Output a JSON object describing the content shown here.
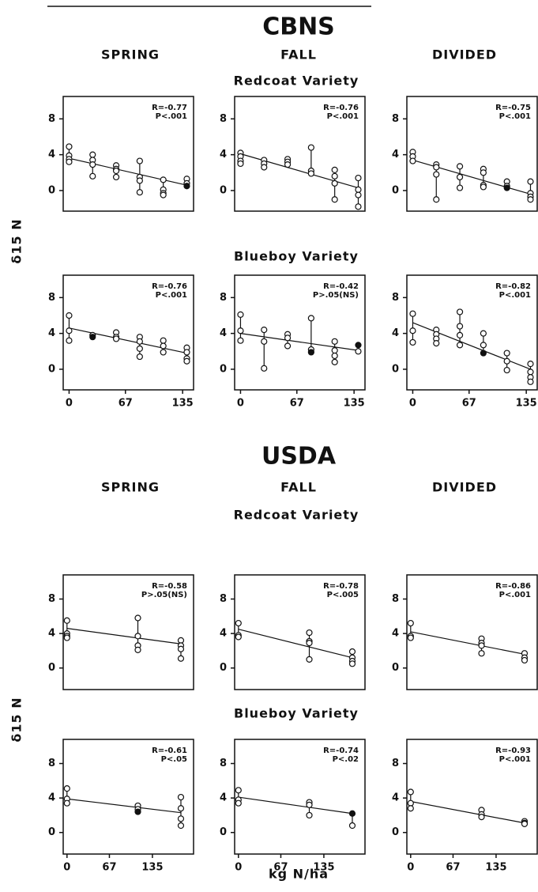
{
  "figure": {
    "sections": [
      {
        "title": "CBNS",
        "columns": [
          "SPRING",
          "FALL",
          "DIVIDED"
        ],
        "rows": [
          "Redcoat Variety",
          "Blueboy Variety"
        ]
      },
      {
        "title": "USDA",
        "columns": [
          "SPRING",
          "FALL",
          "DIVIDED"
        ],
        "rows": [
          "Redcoat Variety",
          "Blueboy Variety"
        ]
      }
    ],
    "ylabel": "δ15 N",
    "xlabel": "kg N/ha"
  },
  "chart_data": [
    {
      "type": "scatter",
      "annotations": [
        "R=-0.77",
        "P<.001"
      ],
      "xlim": [
        -7,
        148
      ],
      "ylim": [
        -2.3,
        10.5
      ],
      "yticks": [
        0,
        4,
        8
      ],
      "x": [
        0,
        0,
        0,
        0,
        28,
        28,
        28,
        28,
        56,
        56,
        56,
        56,
        84,
        84,
        84,
        84,
        112,
        112,
        112,
        112,
        140,
        140,
        140
      ],
      "y": [
        4.9,
        3.9,
        3.5,
        3.2,
        4.0,
        3.4,
        2.9,
        1.6,
        2.8,
        2.4,
        2.2,
        1.5,
        3.3,
        1.5,
        1.1,
        -0.2,
        1.2,
        0.1,
        -0.3,
        -0.5,
        1.3,
        0.8,
        0.5
      ],
      "filled": [
        false,
        false,
        false,
        false,
        false,
        false,
        false,
        false,
        false,
        false,
        false,
        false,
        false,
        false,
        false,
        false,
        false,
        false,
        false,
        false,
        false,
        false,
        true
      ],
      "fit": {
        "x": [
          0,
          140
        ],
        "y": [
          3.6,
          0.6
        ]
      }
    },
    {
      "type": "scatter",
      "annotations": [
        "R=-0.76",
        "P<.001"
      ],
      "xlim": [
        -7,
        148
      ],
      "ylim": [
        -2.3,
        10.5
      ],
      "yticks": [
        0,
        4,
        8
      ],
      "x": [
        0,
        0,
        0,
        0,
        28,
        28,
        28,
        56,
        56,
        56,
        84,
        84,
        84,
        112,
        112,
        112,
        112,
        140,
        140,
        140,
        140
      ],
      "y": [
        4.2,
        3.8,
        3.3,
        3.0,
        3.4,
        3.0,
        2.6,
        3.5,
        3.2,
        2.9,
        4.8,
        2.2,
        1.9,
        2.3,
        1.6,
        0.8,
        -1.0,
        1.4,
        0.1,
        -0.5,
        -1.8
      ],
      "filled": [
        false,
        false,
        false,
        false,
        false,
        false,
        false,
        false,
        false,
        false,
        false,
        false,
        false,
        false,
        false,
        false,
        false,
        false,
        false,
        false,
        false
      ],
      "fit": {
        "x": [
          0,
          140
        ],
        "y": [
          4.1,
          0.3
        ]
      }
    },
    {
      "type": "scatter",
      "annotations": [
        "R=-0.75",
        "P<.001"
      ],
      "xlim": [
        -7,
        148
      ],
      "ylim": [
        -2.3,
        10.5
      ],
      "yticks": [
        0,
        4,
        8
      ],
      "x": [
        0,
        0,
        0,
        28,
        28,
        28,
        28,
        56,
        56,
        56,
        84,
        84,
        84,
        84,
        112,
        112,
        112,
        140,
        140,
        140,
        140
      ],
      "y": [
        4.3,
        3.8,
        3.3,
        2.9,
        2.6,
        1.8,
        -1.0,
        2.7,
        1.5,
        0.3,
        2.4,
        2.0,
        0.6,
        0.4,
        1.0,
        0.5,
        0.3,
        1.0,
        -0.3,
        -0.7,
        -1.0
      ],
      "filled": [
        false,
        false,
        false,
        false,
        false,
        false,
        false,
        false,
        false,
        false,
        false,
        false,
        false,
        false,
        false,
        false,
        true,
        false,
        false,
        false,
        false
      ],
      "fit": {
        "x": [
          0,
          140
        ],
        "y": [
          3.4,
          -0.4
        ]
      }
    },
    {
      "type": "scatter",
      "annotations": [
        "R=-0.76",
        "P<.001"
      ],
      "xlim": [
        -7,
        148
      ],
      "ylim": [
        -2.3,
        10.5
      ],
      "yticks": [
        0,
        4,
        8
      ],
      "xticks": [
        0,
        67,
        135
      ],
      "x": [
        0,
        0,
        0,
        28,
        28,
        56,
        56,
        56,
        84,
        84,
        84,
        84,
        112,
        112,
        112,
        140,
        140,
        140,
        140
      ],
      "y": [
        6.0,
        4.3,
        3.2,
        3.8,
        3.6,
        4.1,
        3.6,
        3.4,
        3.6,
        3.1,
        2.3,
        1.4,
        3.2,
        2.6,
        1.9,
        2.4,
        1.9,
        1.2,
        0.9
      ],
      "filled": [
        false,
        false,
        false,
        false,
        true,
        false,
        false,
        false,
        false,
        false,
        false,
        false,
        false,
        false,
        false,
        false,
        false,
        false,
        false
      ],
      "fit": {
        "x": [
          0,
          140
        ],
        "y": [
          4.6,
          1.8
        ]
      }
    },
    {
      "type": "scatter",
      "annotations": [
        "R=-0.42",
        "P>.05(NS)"
      ],
      "xlim": [
        -7,
        148
      ],
      "ylim": [
        -2.3,
        10.5
      ],
      "yticks": [
        0,
        4,
        8
      ],
      "xticks": [
        0,
        67,
        135
      ],
      "x": [
        0,
        0,
        0,
        28,
        28,
        28,
        56,
        56,
        56,
        84,
        84,
        84,
        112,
        112,
        112,
        112,
        140,
        140
      ],
      "y": [
        6.1,
        4.3,
        3.2,
        4.4,
        3.1,
        0.1,
        3.9,
        3.5,
        2.6,
        5.7,
        2.2,
        1.9,
        3.1,
        2.1,
        1.5,
        0.8,
        2.7,
        2.0
      ],
      "filled": [
        false,
        false,
        false,
        false,
        false,
        false,
        false,
        false,
        false,
        false,
        false,
        true,
        false,
        false,
        false,
        false,
        true,
        false
      ],
      "fit": {
        "x": [
          0,
          140
        ],
        "y": [
          4.0,
          2.1
        ]
      }
    },
    {
      "type": "scatter",
      "annotations": [
        "R=-0.82",
        "P<.001"
      ],
      "xlim": [
        -7,
        148
      ],
      "ylim": [
        -2.3,
        10.5
      ],
      "yticks": [
        0,
        4,
        8
      ],
      "xticks": [
        0,
        67,
        135
      ],
      "x": [
        0,
        0,
        0,
        28,
        28,
        28,
        28,
        56,
        56,
        56,
        56,
        84,
        84,
        84,
        112,
        112,
        112,
        140,
        140,
        140,
        140
      ],
      "y": [
        6.2,
        4.3,
        3.0,
        4.4,
        3.9,
        3.4,
        2.9,
        6.4,
        4.8,
        3.8,
        2.7,
        4.0,
        2.7,
        1.8,
        1.8,
        0.9,
        -0.1,
        0.6,
        -0.3,
        -0.9,
        -1.4
      ],
      "filled": [
        false,
        false,
        false,
        false,
        false,
        false,
        false,
        false,
        false,
        false,
        false,
        false,
        false,
        true,
        false,
        false,
        false,
        false,
        false,
        false,
        false
      ],
      "fit": {
        "x": [
          0,
          140
        ],
        "y": [
          5.2,
          0.0
        ]
      }
    },
    {
      "type": "scatter",
      "annotations": [
        "R=-0.58",
        "P>.05(NS)"
      ],
      "xlim": [
        -6,
        200
      ],
      "ylim": [
        -2.5,
        10.8
      ],
      "yticks": [
        0,
        4,
        8
      ],
      "x": [
        0,
        0,
        0,
        0,
        112,
        112,
        112,
        112,
        180,
        180,
        180,
        180
      ],
      "y": [
        5.5,
        4.0,
        3.7,
        3.5,
        5.8,
        3.7,
        2.6,
        2.1,
        3.2,
        2.6,
        2.2,
        1.1
      ],
      "filled": [
        false,
        false,
        false,
        false,
        false,
        false,
        false,
        false,
        false,
        false,
        false,
        false
      ],
      "fit": {
        "x": [
          0,
          180
        ],
        "y": [
          4.6,
          2.8
        ]
      }
    },
    {
      "type": "scatter",
      "annotations": [
        "R=-0.78",
        "P<.005"
      ],
      "xlim": [
        -6,
        200
      ],
      "ylim": [
        -2.5,
        10.8
      ],
      "yticks": [
        0,
        4,
        8
      ],
      "x": [
        0,
        0,
        0,
        112,
        112,
        112,
        112,
        180,
        180,
        180,
        180
      ],
      "y": [
        5.2,
        3.8,
        3.6,
        4.1,
        3.1,
        2.9,
        1.0,
        1.9,
        1.2,
        0.8,
        0.5
      ],
      "filled": [
        false,
        false,
        false,
        false,
        false,
        false,
        false,
        false,
        false,
        false,
        false
      ],
      "fit": {
        "x": [
          0,
          180
        ],
        "y": [
          4.5,
          1.2
        ]
      }
    },
    {
      "type": "scatter",
      "annotations": [
        "R=-0.86",
        "P<.001"
      ],
      "xlim": [
        -6,
        200
      ],
      "ylim": [
        -2.5,
        10.8
      ],
      "yticks": [
        0,
        4,
        8
      ],
      "x": [
        0,
        0,
        0,
        112,
        112,
        112,
        112,
        180,
        180,
        180
      ],
      "y": [
        5.2,
        3.7,
        3.5,
        3.4,
        2.9,
        2.6,
        1.7,
        1.7,
        1.2,
        0.9
      ],
      "filled": [
        false,
        false,
        false,
        false,
        false,
        false,
        false,
        false,
        false,
        false
      ],
      "fit": {
        "x": [
          0,
          180
        ],
        "y": [
          4.2,
          1.6
        ]
      }
    },
    {
      "type": "scatter",
      "annotations": [
        "R=-0.61",
        "P<.05"
      ],
      "xlim": [
        -6,
        200
      ],
      "ylim": [
        -2.5,
        10.8
      ],
      "yticks": [
        0,
        4,
        8
      ],
      "xticks": [
        0,
        67,
        135
      ],
      "x": [
        0,
        0,
        0,
        112,
        112,
        112,
        180,
        180,
        180,
        180
      ],
      "y": [
        5.1,
        3.9,
        3.4,
        3.1,
        2.7,
        2.4,
        4.1,
        2.8,
        1.6,
        0.8
      ],
      "filled": [
        false,
        false,
        false,
        false,
        false,
        true,
        false,
        false,
        false,
        false
      ],
      "fit": {
        "x": [
          0,
          180
        ],
        "y": [
          3.9,
          2.3
        ]
      }
    },
    {
      "type": "scatter",
      "annotations": [
        "R=-0.74",
        "P<.02"
      ],
      "xlim": [
        -6,
        200
      ],
      "ylim": [
        -2.5,
        10.8
      ],
      "yticks": [
        0,
        4,
        8
      ],
      "xticks": [
        0,
        67,
        135
      ],
      "x": [
        0,
        0,
        0,
        112,
        112,
        112,
        180,
        180
      ],
      "y": [
        4.9,
        3.8,
        3.4,
        3.5,
        3.2,
        2.0,
        2.2,
        0.8
      ],
      "filled": [
        false,
        false,
        false,
        false,
        false,
        false,
        true,
        false
      ],
      "fit": {
        "x": [
          0,
          180
        ],
        "y": [
          4.1,
          2.2
        ]
      }
    },
    {
      "type": "scatter",
      "annotations": [
        "R=-0.93",
        "P<.001"
      ],
      "xlim": [
        -6,
        200
      ],
      "ylim": [
        -2.5,
        10.8
      ],
      "yticks": [
        0,
        4,
        8
      ],
      "xticks": [
        0,
        67,
        135
      ],
      "x": [
        0,
        0,
        0,
        112,
        112,
        112,
        180,
        180,
        180
      ],
      "y": [
        4.7,
        3.4,
        2.8,
        2.6,
        2.1,
        1.8,
        1.3,
        1.1,
        1.0
      ],
      "filled": [
        false,
        false,
        false,
        false,
        false,
        false,
        false,
        false,
        false
      ],
      "fit": {
        "x": [
          0,
          180
        ],
        "y": [
          3.6,
          1.1
        ]
      }
    }
  ]
}
